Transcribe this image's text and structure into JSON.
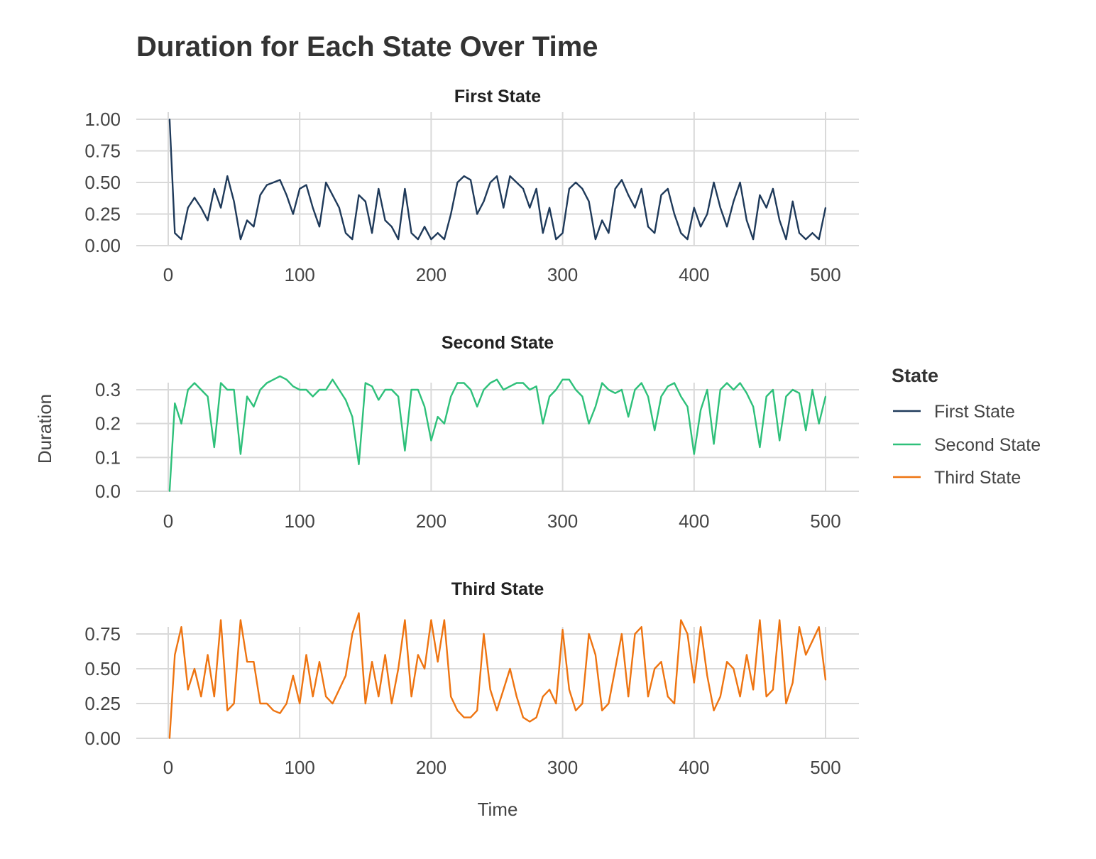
{
  "chart_data": {
    "type": "line",
    "title": "Duration for Each State Over Time",
    "xlabel": "Time",
    "ylabel": "Duration",
    "legend": {
      "title": "State",
      "placement": "right",
      "entries": [
        {
          "label": "First State",
          "color": "#1f3a5a"
        },
        {
          "label": "Second State",
          "color": "#2ec07a"
        },
        {
          "label": "Third State",
          "color": "#ee7411"
        }
      ]
    },
    "grid": true,
    "facets": [
      {
        "title": "First State",
        "color": "#1f3a5a",
        "xlim": [
          0,
          500
        ],
        "ylim": [
          0,
          1.0
        ],
        "x_ticks": [
          "0",
          "100",
          "200",
          "300",
          "400",
          "500"
        ],
        "y_ticks": [
          "0.00",
          "0.25",
          "0.50",
          "0.75",
          "1.00"
        ],
        "y_tick_values": [
          0,
          0.25,
          0.5,
          0.75,
          1.0
        ],
        "x": [
          1,
          5,
          10,
          15,
          20,
          25,
          30,
          35,
          40,
          45,
          50,
          55,
          60,
          65,
          70,
          75,
          80,
          85,
          90,
          95,
          100,
          105,
          110,
          115,
          120,
          125,
          130,
          135,
          140,
          145,
          150,
          155,
          160,
          165,
          170,
          175,
          180,
          185,
          190,
          195,
          200,
          205,
          210,
          215,
          220,
          225,
          230,
          235,
          240,
          245,
          250,
          255,
          260,
          265,
          270,
          275,
          280,
          285,
          290,
          295,
          300,
          305,
          310,
          315,
          320,
          325,
          330,
          335,
          340,
          345,
          350,
          355,
          360,
          365,
          370,
          375,
          380,
          385,
          390,
          395,
          400,
          405,
          410,
          415,
          420,
          425,
          430,
          435,
          440,
          445,
          450,
          455,
          460,
          465,
          470,
          475,
          480,
          485,
          490,
          495,
          500
        ],
        "y": [
          1.0,
          0.1,
          0.05,
          0.3,
          0.38,
          0.3,
          0.2,
          0.45,
          0.3,
          0.55,
          0.35,
          0.05,
          0.2,
          0.15,
          0.4,
          0.48,
          0.5,
          0.52,
          0.4,
          0.25,
          0.45,
          0.48,
          0.3,
          0.15,
          0.5,
          0.4,
          0.3,
          0.1,
          0.05,
          0.4,
          0.35,
          0.1,
          0.45,
          0.2,
          0.15,
          0.05,
          0.45,
          0.1,
          0.05,
          0.15,
          0.05,
          0.1,
          0.05,
          0.25,
          0.5,
          0.55,
          0.52,
          0.25,
          0.35,
          0.5,
          0.55,
          0.3,
          0.55,
          0.5,
          0.45,
          0.3,
          0.45,
          0.1,
          0.3,
          0.05,
          0.1,
          0.45,
          0.5,
          0.45,
          0.35,
          0.05,
          0.2,
          0.1,
          0.45,
          0.52,
          0.4,
          0.3,
          0.45,
          0.15,
          0.1,
          0.4,
          0.45,
          0.25,
          0.1,
          0.05,
          0.3,
          0.15,
          0.25,
          0.5,
          0.3,
          0.15,
          0.35,
          0.5,
          0.2,
          0.05,
          0.4,
          0.3,
          0.45,
          0.2,
          0.05,
          0.35,
          0.1,
          0.05,
          0.1,
          0.05,
          0.3
        ]
      },
      {
        "title": "Second State",
        "color": "#2ec07a",
        "xlim": [
          0,
          500
        ],
        "ylim": [
          0,
          0.3
        ],
        "x_ticks": [
          "0",
          "100",
          "200",
          "300",
          "400",
          "500"
        ],
        "y_ticks": [
          "0.0",
          "0.1",
          "0.2",
          "0.3"
        ],
        "y_tick_values": [
          0,
          0.1,
          0.2,
          0.3
        ],
        "x": [
          1,
          5,
          10,
          15,
          20,
          25,
          30,
          35,
          40,
          45,
          50,
          55,
          60,
          65,
          70,
          75,
          80,
          85,
          90,
          95,
          100,
          105,
          110,
          115,
          120,
          125,
          130,
          135,
          140,
          145,
          150,
          155,
          160,
          165,
          170,
          175,
          180,
          185,
          190,
          195,
          200,
          205,
          210,
          215,
          220,
          225,
          230,
          235,
          240,
          245,
          250,
          255,
          260,
          265,
          270,
          275,
          280,
          285,
          290,
          295,
          300,
          305,
          310,
          315,
          320,
          325,
          330,
          335,
          340,
          345,
          350,
          355,
          360,
          365,
          370,
          375,
          380,
          385,
          390,
          395,
          400,
          405,
          410,
          415,
          420,
          425,
          430,
          435,
          440,
          445,
          450,
          455,
          460,
          465,
          470,
          475,
          480,
          485,
          490,
          495,
          500
        ],
        "y": [
          0.0,
          0.26,
          0.2,
          0.3,
          0.32,
          0.3,
          0.28,
          0.13,
          0.32,
          0.3,
          0.3,
          0.11,
          0.28,
          0.25,
          0.3,
          0.32,
          0.33,
          0.34,
          0.33,
          0.31,
          0.3,
          0.3,
          0.28,
          0.3,
          0.3,
          0.33,
          0.3,
          0.27,
          0.22,
          0.08,
          0.32,
          0.31,
          0.27,
          0.3,
          0.3,
          0.28,
          0.12,
          0.3,
          0.3,
          0.25,
          0.15,
          0.22,
          0.2,
          0.28,
          0.32,
          0.32,
          0.3,
          0.25,
          0.3,
          0.32,
          0.33,
          0.3,
          0.31,
          0.32,
          0.32,
          0.3,
          0.31,
          0.2,
          0.28,
          0.3,
          0.33,
          0.33,
          0.3,
          0.28,
          0.2,
          0.25,
          0.32,
          0.3,
          0.29,
          0.3,
          0.22,
          0.3,
          0.32,
          0.28,
          0.18,
          0.28,
          0.31,
          0.32,
          0.28,
          0.25,
          0.11,
          0.24,
          0.3,
          0.14,
          0.3,
          0.32,
          0.3,
          0.32,
          0.29,
          0.25,
          0.13,
          0.28,
          0.3,
          0.15,
          0.28,
          0.3,
          0.29,
          0.18,
          0.3,
          0.2,
          0.28
        ]
      },
      {
        "title": "Third State",
        "color": "#ee7411",
        "xlim": [
          0,
          500
        ],
        "ylim": [
          0,
          0.75
        ],
        "x_ticks": [
          "0",
          "100",
          "200",
          "300",
          "400",
          "500"
        ],
        "y_ticks": [
          "0.00",
          "0.25",
          "0.50",
          "0.75"
        ],
        "y_tick_values": [
          0,
          0.25,
          0.5,
          0.75
        ],
        "x": [
          1,
          5,
          10,
          15,
          20,
          25,
          30,
          35,
          40,
          45,
          50,
          55,
          60,
          65,
          70,
          75,
          80,
          85,
          90,
          95,
          100,
          105,
          110,
          115,
          120,
          125,
          130,
          135,
          140,
          145,
          150,
          155,
          160,
          165,
          170,
          175,
          180,
          185,
          190,
          195,
          200,
          205,
          210,
          215,
          220,
          225,
          230,
          235,
          240,
          245,
          250,
          255,
          260,
          265,
          270,
          275,
          280,
          285,
          290,
          295,
          300,
          305,
          310,
          315,
          320,
          325,
          330,
          335,
          340,
          345,
          350,
          355,
          360,
          365,
          370,
          375,
          380,
          385,
          390,
          395,
          400,
          405,
          410,
          415,
          420,
          425,
          430,
          435,
          440,
          445,
          450,
          455,
          460,
          465,
          470,
          475,
          480,
          485,
          490,
          495,
          500
        ],
        "y": [
          0.0,
          0.6,
          0.8,
          0.35,
          0.5,
          0.3,
          0.6,
          0.3,
          0.85,
          0.2,
          0.25,
          0.85,
          0.55,
          0.55,
          0.25,
          0.25,
          0.2,
          0.18,
          0.25,
          0.45,
          0.25,
          0.6,
          0.3,
          0.55,
          0.3,
          0.25,
          0.35,
          0.45,
          0.75,
          0.9,
          0.25,
          0.55,
          0.3,
          0.6,
          0.25,
          0.5,
          0.85,
          0.3,
          0.6,
          0.5,
          0.85,
          0.55,
          0.85,
          0.3,
          0.2,
          0.15,
          0.15,
          0.2,
          0.75,
          0.35,
          0.2,
          0.35,
          0.5,
          0.3,
          0.15,
          0.12,
          0.15,
          0.3,
          0.35,
          0.25,
          0.78,
          0.35,
          0.2,
          0.25,
          0.75,
          0.6,
          0.2,
          0.25,
          0.5,
          0.75,
          0.3,
          0.75,
          0.8,
          0.3,
          0.5,
          0.55,
          0.3,
          0.25,
          0.85,
          0.75,
          0.4,
          0.8,
          0.45,
          0.2,
          0.3,
          0.55,
          0.5,
          0.3,
          0.6,
          0.35,
          0.85,
          0.3,
          0.35,
          0.85,
          0.25,
          0.4,
          0.8,
          0.6,
          0.7,
          0.8,
          0.42
        ]
      }
    ]
  }
}
